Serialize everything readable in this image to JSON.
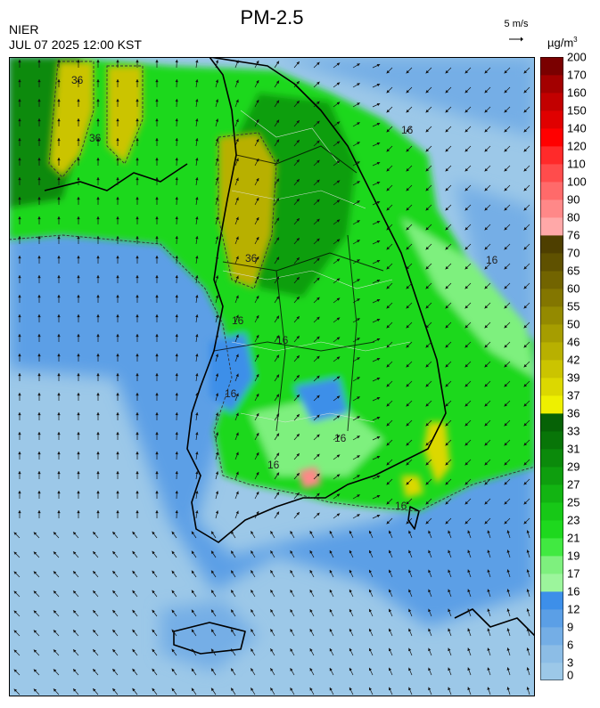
{
  "header": {
    "org": "NIER",
    "datetime": "JUL 07 2025 12:00 KST",
    "title": "PM-2.5",
    "wind_reference": "5 m/s",
    "unit_main": "µg/m",
    "unit_sup": "3"
  },
  "colorbar": {
    "labels": [
      "0",
      "3",
      "6",
      "9",
      "12",
      "16",
      "17",
      "19",
      "21",
      "23",
      "25",
      "27",
      "29",
      "31",
      "33",
      "36",
      "37",
      "39",
      "42",
      "46",
      "50",
      "55",
      "60",
      "65",
      "70",
      "76",
      "80",
      "90",
      "100",
      "110",
      "120",
      "140",
      "150",
      "160",
      "170",
      "200"
    ],
    "colors": [
      "#9cc8e8",
      "#8cbde6",
      "#74aee6",
      "#5b9fe6",
      "#3d8fe9",
      "#9cf59c",
      "#7ef07e",
      "#41e941",
      "#1ed81e",
      "#17c817",
      "#12b412",
      "#0e9e0e",
      "#0b8a0b",
      "#087508",
      "#066206",
      "#eef000",
      "#dcd800",
      "#cbc400",
      "#b8b000",
      "#a69d00",
      "#948a00",
      "#837600",
      "#726400",
      "#5f5100",
      "#4e3f00",
      "#ffa8a8",
      "#ff8888",
      "#ff6a6a",
      "#ff4c4c",
      "#ff2a2a",
      "#ff0000",
      "#e00000",
      "#c20000",
      "#a30000",
      "#7a0000"
    ],
    "level_colors": {
      "clean": "#9cc8e8",
      "good": "#3d8fe9",
      "moderate": "#17c817",
      "bad": "#cbc400",
      "very_bad": "#ff0000"
    }
  },
  "map": {
    "contour_labels": [
      "36",
      "36",
      "36",
      "16",
      "16",
      "16",
      "16",
      "16",
      "16",
      "16",
      "16"
    ]
  }
}
